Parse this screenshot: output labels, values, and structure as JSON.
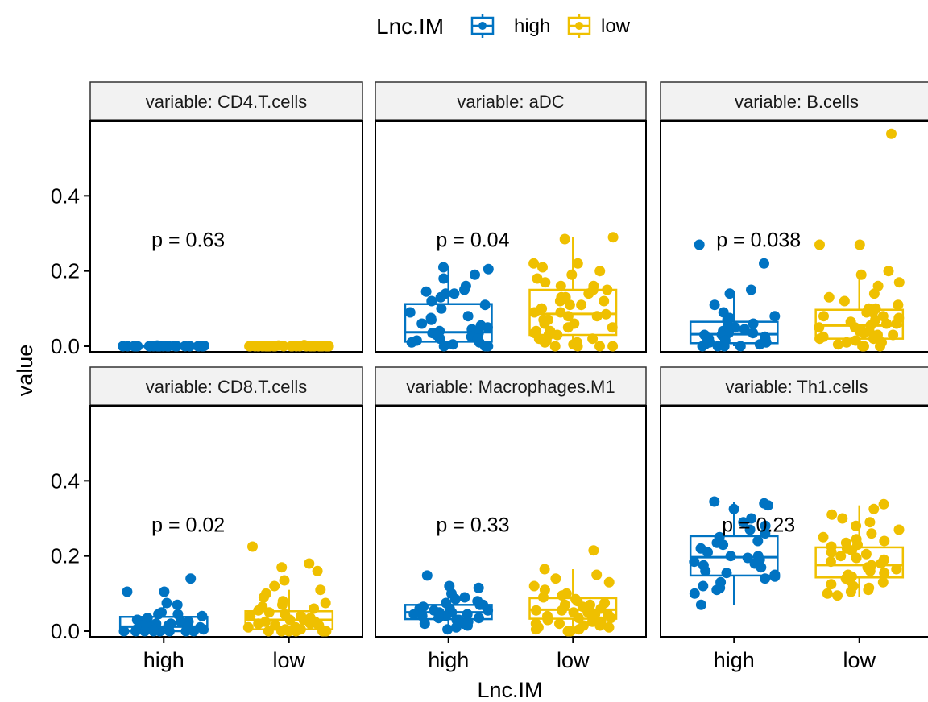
{
  "legend": {
    "title": "Lnc.IM",
    "items": [
      {
        "label": "high",
        "color": "#0073C2"
      },
      {
        "label": "low",
        "color": "#EFC000"
      }
    ],
    "position": "top"
  },
  "chart_data": {
    "type": "boxplot-jitter-facets",
    "xlabel": "Lnc.IM",
    "ylabel": "value",
    "categories": [
      "high",
      "low"
    ],
    "ylim": [
      -0.015,
      0.6
    ],
    "yticks": [
      0.0,
      0.2,
      0.4
    ],
    "ytick_labels": [
      "0.0",
      "0.2",
      "0.4"
    ],
    "grid": false,
    "facets": [
      {
        "strip": "variable: CD4.T.cells",
        "p_label": "p = 0.63",
        "groups": [
          {
            "name": "high",
            "box": {
              "q1": 0.0,
              "median": 0.0,
              "q3": 0.0,
              "whisker_low": 0.0,
              "whisker_high": 0.0
            },
            "points": [
              0,
              0,
              0,
              0,
              0,
              0.001,
              0,
              0,
              0,
              0,
              0,
              0,
              0.001,
              0,
              0,
              0,
              0,
              0,
              0,
              0,
              0,
              0,
              0,
              0,
              0,
              0,
              0,
              0,
              0.002,
              0
            ]
          },
          {
            "name": "low",
            "box": {
              "q1": 0.0,
              "median": 0.0,
              "q3": 0.0,
              "whisker_low": 0.0,
              "whisker_high": 0.0
            },
            "points": [
              0,
              0,
              0,
              0,
              0,
              0.001,
              0,
              0,
              0.002,
              0,
              0,
              0,
              0,
              0,
              0,
              0,
              0,
              0,
              0.003,
              0,
              0,
              0,
              0,
              0,
              0,
              0,
              0,
              0,
              0,
              0.001,
              0,
              0,
              0,
              0,
              0,
              0,
              0,
              0,
              0,
              0
            ]
          }
        ]
      },
      {
        "strip": "variable: aDC",
        "p_label": "p = 0.04",
        "groups": [
          {
            "name": "high",
            "box": {
              "q1": 0.012,
              "median": 0.037,
              "q3": 0.112,
              "whisker_low": 0.0,
              "whisker_high": 0.21
            },
            "points": [
              0.21,
              0.205,
              0.19,
              0.18,
              0.16,
              0.15,
              0.145,
              0.14,
              0.14,
              0.13,
              0.12,
              0.11,
              0.1,
              0.09,
              0.08,
              0.075,
              0.07,
              0.06,
              0.055,
              0.05,
              0.045,
              0.04,
              0.035,
              0.035,
              0.03,
              0.025,
              0.02,
              0.02,
              0.015,
              0.01,
              0.01,
              0.005,
              0.0,
              0.0,
              0.0
            ]
          },
          {
            "name": "low",
            "box": {
              "q1": 0.03,
              "median": 0.086,
              "q3": 0.15,
              "whisker_low": 0.0,
              "whisker_high": 0.29
            },
            "points": [
              0.29,
              0.285,
              0.22,
              0.22,
              0.21,
              0.2,
              0.19,
              0.18,
              0.17,
              0.16,
              0.16,
              0.15,
              0.15,
              0.14,
              0.13,
              0.13,
              0.12,
              0.12,
              0.11,
              0.11,
              0.1,
              0.1,
              0.09,
              0.09,
              0.085,
              0.08,
              0.08,
              0.07,
              0.07,
              0.06,
              0.06,
              0.05,
              0.05,
              0.04,
              0.04,
              0.035,
              0.03,
              0.03,
              0.02,
              0.02,
              0.015,
              0.01,
              0.01,
              0.005,
              0.0,
              0.0,
              0.0,
              0.0
            ]
          }
        ]
      },
      {
        "strip": "variable: B.cells",
        "p_label": "p = 0.038",
        "groups": [
          {
            "name": "high",
            "box": {
              "q1": 0.008,
              "median": 0.032,
              "q3": 0.065,
              "whisker_low": 0.0,
              "whisker_high": 0.14
            },
            "points": [
              0.27,
              0.22,
              0.15,
              0.14,
              0.11,
              0.09,
              0.08,
              0.075,
              0.07,
              0.06,
              0.055,
              0.05,
              0.045,
              0.04,
              0.035,
              0.035,
              0.03,
              0.03,
              0.025,
              0.02,
              0.02,
              0.015,
              0.01,
              0.01,
              0.005,
              0.005,
              0.0,
              0.0,
              0.0,
              0.0
            ]
          },
          {
            "name": "low",
            "box": {
              "q1": 0.02,
              "median": 0.055,
              "q3": 0.097,
              "whisker_low": 0.0,
              "whisker_high": 0.18
            },
            "points": [
              0.565,
              0.27,
              0.27,
              0.2,
              0.19,
              0.17,
              0.16,
              0.14,
              0.13,
              0.12,
              0.11,
              0.1,
              0.1,
              0.09,
              0.09,
              0.08,
              0.08,
              0.075,
              0.07,
              0.065,
              0.06,
              0.06,
              0.055,
              0.05,
              0.05,
              0.045,
              0.04,
              0.04,
              0.035,
              0.03,
              0.03,
              0.025,
              0.02,
              0.02,
              0.015,
              0.01,
              0.01,
              0.005,
              0.0,
              0.0,
              0.0
            ]
          }
        ]
      },
      {
        "strip": "variable: CD8.T.cells",
        "p_label": "p = 0.02",
        "groups": [
          {
            "name": "high",
            "box": {
              "q1": 0.0,
              "median": 0.012,
              "q3": 0.038,
              "whisker_low": 0.0,
              "whisker_high": 0.07
            },
            "points": [
              0.14,
              0.105,
              0.105,
              0.075,
              0.07,
              0.05,
              0.045,
              0.045,
              0.04,
              0.035,
              0.03,
              0.03,
              0.025,
              0.025,
              0.02,
              0.02,
              0.015,
              0.015,
              0.01,
              0.01,
              0.01,
              0.005,
              0.005,
              0.005,
              0.0,
              0.0,
              0.0,
              0.0,
              0.0,
              0.0,
              0.0,
              0.0
            ]
          },
          {
            "name": "low",
            "box": {
              "q1": 0.005,
              "median": 0.03,
              "q3": 0.053,
              "whisker_low": 0.0,
              "whisker_high": 0.11
            },
            "points": [
              0.225,
              0.18,
              0.17,
              0.16,
              0.135,
              0.12,
              0.11,
              0.1,
              0.09,
              0.08,
              0.075,
              0.07,
              0.065,
              0.06,
              0.055,
              0.05,
              0.045,
              0.04,
              0.04,
              0.035,
              0.03,
              0.03,
              0.025,
              0.025,
              0.02,
              0.02,
              0.015,
              0.015,
              0.01,
              0.01,
              0.01,
              0.005,
              0.005,
              0.0,
              0.0,
              0.0,
              0.0,
              0.0,
              0.0,
              0.0
            ]
          }
        ]
      },
      {
        "strip": "variable: Macrophages.M1",
        "p_label": "p = 0.33",
        "groups": [
          {
            "name": "high",
            "box": {
              "q1": 0.032,
              "median": 0.05,
              "q3": 0.07,
              "whisker_low": 0.005,
              "whisker_high": 0.12
            },
            "points": [
              0.148,
              0.12,
              0.115,
              0.1,
              0.09,
              0.085,
              0.08,
              0.075,
              0.07,
              0.07,
              0.065,
              0.06,
              0.06,
              0.055,
              0.055,
              0.05,
              0.05,
              0.045,
              0.045,
              0.04,
              0.04,
              0.035,
              0.035,
              0.03,
              0.03,
              0.025,
              0.02,
              0.02,
              0.015,
              0.01,
              0.005
            ]
          },
          {
            "name": "low",
            "box": {
              "q1": 0.033,
              "median": 0.057,
              "q3": 0.088,
              "whisker_low": 0.0,
              "whisker_high": 0.165
            },
            "points": [
              0.215,
              0.165,
              0.15,
              0.14,
              0.13,
              0.12,
              0.11,
              0.1,
              0.095,
              0.09,
              0.085,
              0.08,
              0.075,
              0.07,
              0.07,
              0.065,
              0.06,
              0.06,
              0.055,
              0.055,
              0.05,
              0.05,
              0.045,
              0.045,
              0.04,
              0.04,
              0.035,
              0.035,
              0.03,
              0.03,
              0.025,
              0.025,
              0.02,
              0.02,
              0.015,
              0.015,
              0.01,
              0.01,
              0.005,
              0.005,
              0.0,
              0.0
            ]
          }
        ]
      },
      {
        "strip": "variable: Th1.cells",
        "p_label": "p = 0.23",
        "groups": [
          {
            "name": "high",
            "box": {
              "q1": 0.148,
              "median": 0.197,
              "q3": 0.253,
              "whisker_low": 0.07,
              "whisker_high": 0.343
            },
            "points": [
              0.345,
              0.34,
              0.335,
              0.325,
              0.3,
              0.29,
              0.28,
              0.27,
              0.26,
              0.25,
              0.24,
              0.235,
              0.23,
              0.22,
              0.21,
              0.2,
              0.2,
              0.195,
              0.19,
              0.185,
              0.18,
              0.175,
              0.17,
              0.16,
              0.155,
              0.15,
              0.145,
              0.14,
              0.13,
              0.12,
              0.115,
              0.11,
              0.1,
              0.07
            ]
          },
          {
            "name": "low",
            "box": {
              "q1": 0.143,
              "median": 0.176,
              "q3": 0.223,
              "whisker_low": 0.09,
              "whisker_high": 0.335
            },
            "points": [
              0.338,
              0.325,
              0.31,
              0.3,
              0.29,
              0.28,
              0.27,
              0.26,
              0.25,
              0.245,
              0.24,
              0.235,
              0.23,
              0.225,
              0.22,
              0.215,
              0.21,
              0.205,
              0.2,
              0.195,
              0.19,
              0.185,
              0.18,
              0.175,
              0.17,
              0.165,
              0.16,
              0.155,
              0.15,
              0.145,
              0.14,
              0.135,
              0.13,
              0.125,
              0.12,
              0.115,
              0.11,
              0.105,
              0.1,
              0.095
            ]
          }
        ]
      }
    ]
  }
}
